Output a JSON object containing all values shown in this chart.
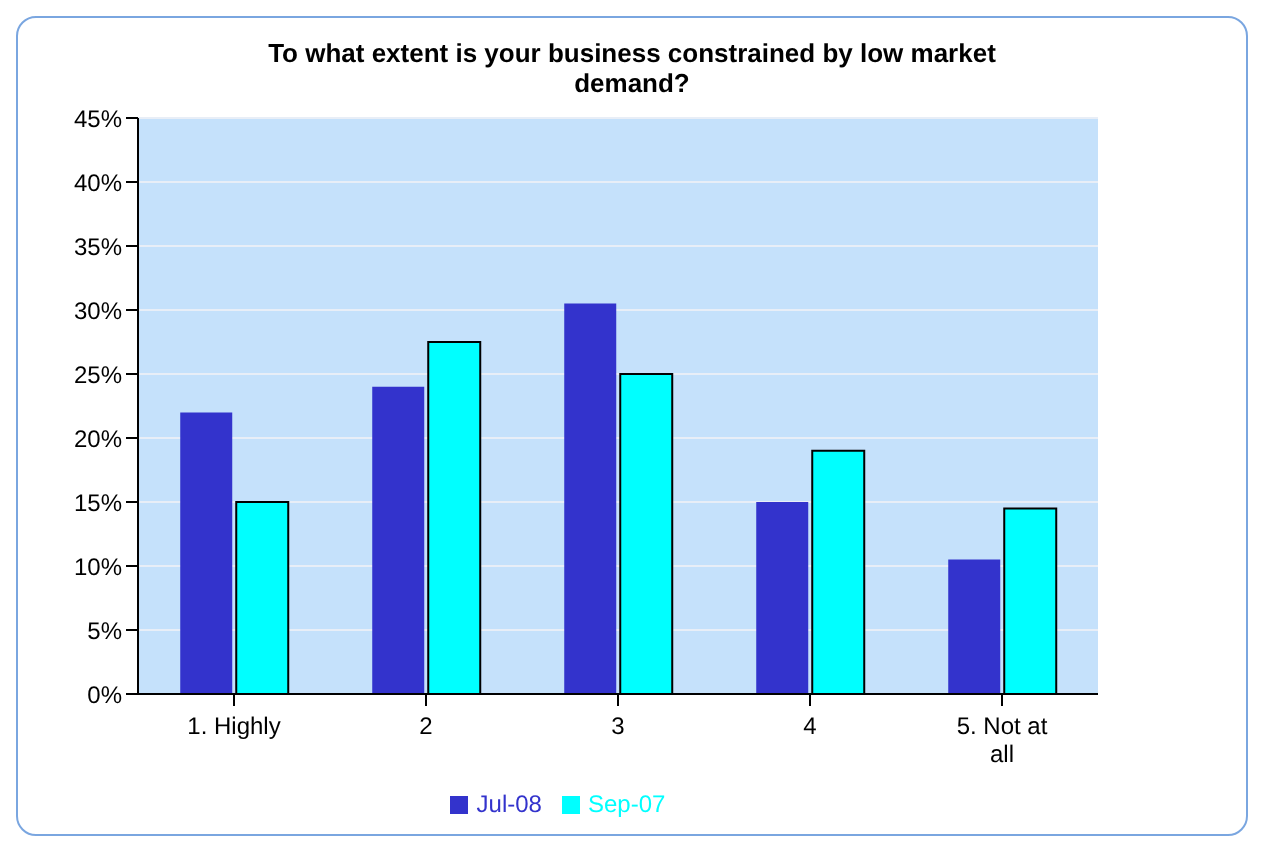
{
  "chart_data": {
    "type": "bar",
    "title": "To what extent is your business constrained by low market demand?",
    "categories": [
      "1. Highly",
      "2",
      "3",
      "4",
      "5. Not at all"
    ],
    "series": [
      {
        "name": "Jul-08",
        "color": "#3333cc",
        "values": [
          22,
          24,
          30.5,
          15,
          10.5
        ]
      },
      {
        "name": "Sep-07",
        "color": "#00ffff",
        "values": [
          15,
          27.5,
          25,
          19,
          14.5
        ]
      }
    ],
    "ylim": [
      0,
      45
    ],
    "yticks": [
      {
        "value": 0,
        "label": "0%"
      },
      {
        "value": 5,
        "label": "5%"
      },
      {
        "value": 10,
        "label": "10%"
      },
      {
        "value": 15,
        "label": "15%"
      },
      {
        "value": 20,
        "label": "20%"
      },
      {
        "value": 25,
        "label": "25%"
      },
      {
        "value": 30,
        "label": "30%"
      },
      {
        "value": 35,
        "label": "35%"
      },
      {
        "value": 40,
        "label": "40%"
      },
      {
        "value": 45,
        "label": "45%"
      }
    ],
    "grid": "y",
    "legend": "bottom"
  }
}
